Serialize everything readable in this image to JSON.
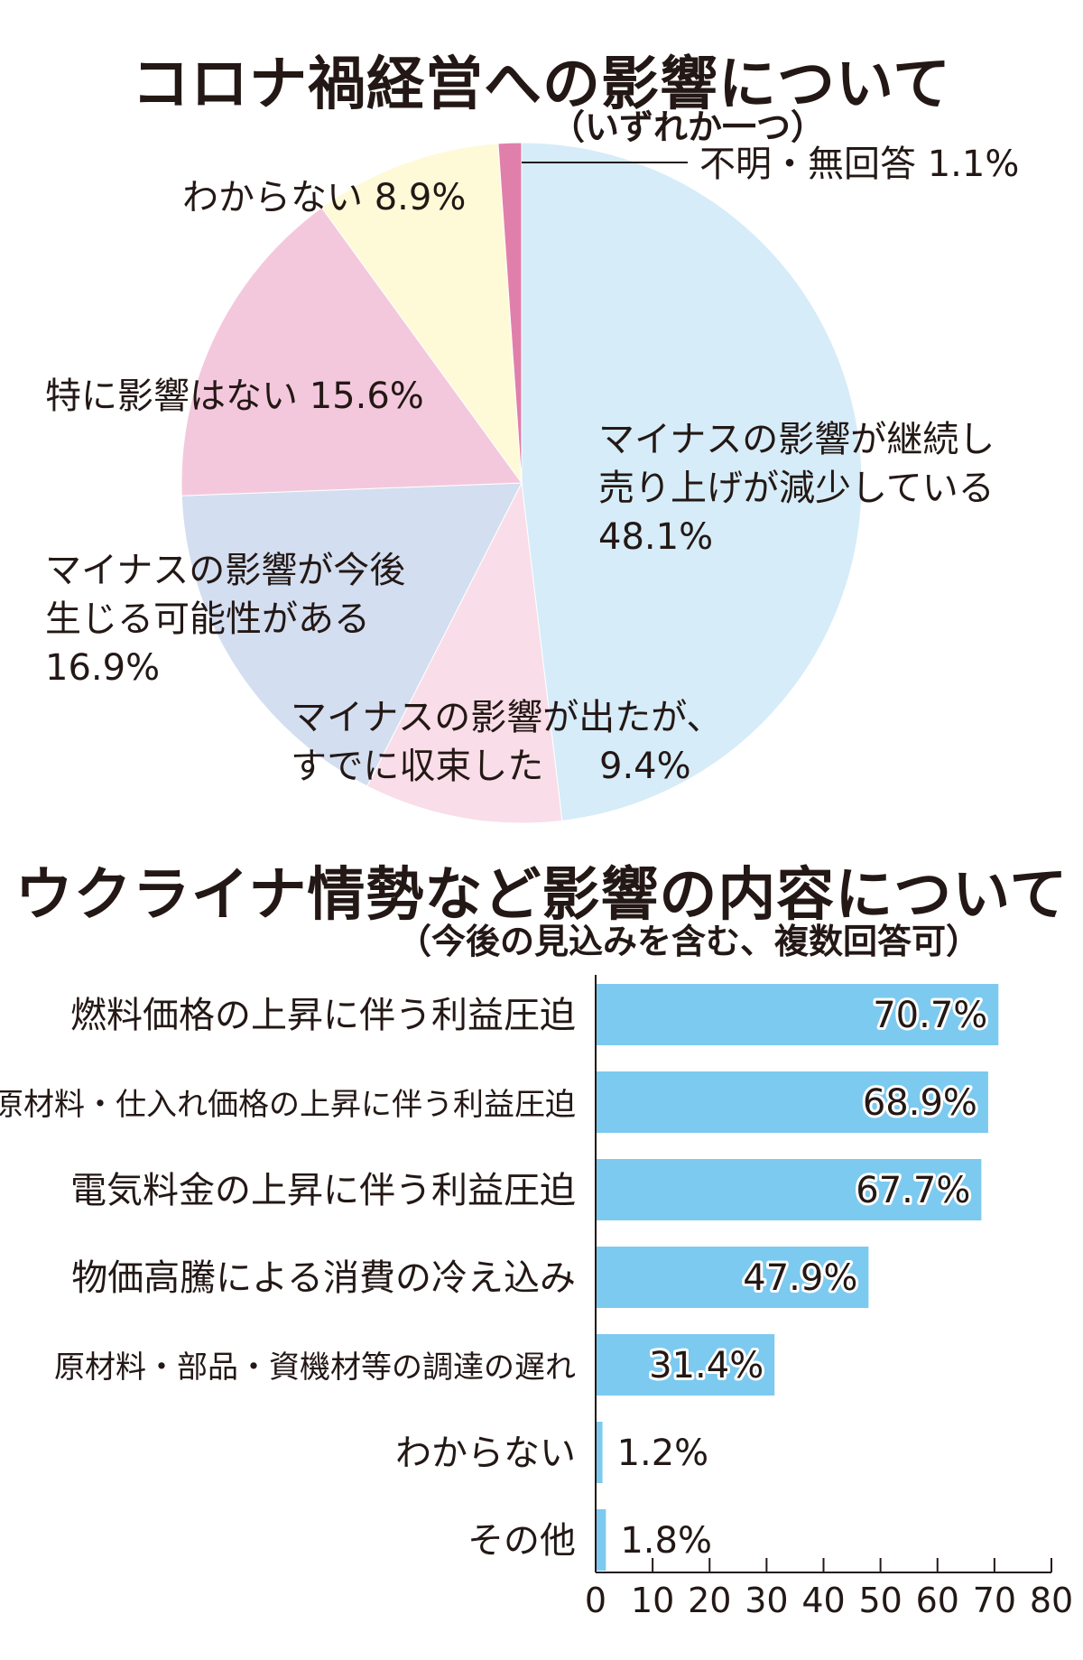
{
  "pie_title": "コロナ禍経営への影響について",
  "pie_subtitle": "（いずれか一つ）",
  "bar_title": "ウクライナ情勢など影響の内容について",
  "bar_subtitle": "（今後の見込みを含む、複数回答可）",
  "chart_data": [
    {
      "type": "pie",
      "title": "コロナ禍経営への影響について",
      "subtitle": "（いずれか一つ）",
      "slices": [
        {
          "label": [
            "マイナスの影響が継続し",
            "売り上げが減少している"
          ],
          "value": 48.1,
          "value_text": "48.1%",
          "color": "#d6ecf8"
        },
        {
          "label": [
            "マイナスの影響が出たが、",
            "すでに収束した"
          ],
          "value": 9.4,
          "value_text": "9.4%",
          "color": "#f9dde8"
        },
        {
          "label": [
            "マイナスの影響が今後",
            "生じる可能性がある"
          ],
          "value": 16.9,
          "value_text": "16.9%",
          "color": "#d3def0"
        },
        {
          "label": [
            "特に影響はない"
          ],
          "value": 15.6,
          "value_text": "15.6%",
          "color": "#f4c8dc"
        },
        {
          "label": [
            "わからない"
          ],
          "value": 8.9,
          "value_text": "8.9%",
          "color": "#fefad8"
        },
        {
          "label": [
            "不明・無回答"
          ],
          "value": 1.1,
          "value_text": "1.1%",
          "color": "#e17fab"
        }
      ]
    },
    {
      "type": "bar",
      "orientation": "horizontal",
      "title": "ウクライナ情勢など影響の内容について",
      "subtitle": "（今後の見込みを含む、複数回答可）",
      "categories": [
        "燃料価格の上昇に伴う利益圧迫",
        "原材料・仕入れ価格の上昇に伴う利益圧迫",
        "電気料金の上昇に伴う利益圧迫",
        "物価高騰による消費の冷え込み",
        "原材料・部品・資機材等の調達の遅れ",
        "わからない",
        "その他"
      ],
      "values": [
        70.7,
        68.9,
        67.7,
        47.9,
        31.4,
        1.2,
        1.8
      ],
      "value_labels": [
        "70.7%",
        "68.9%",
        "67.7%",
        "47.9%",
        "31.4%",
        "1.2%",
        "1.8%"
      ],
      "xlim": [
        0,
        80
      ],
      "ticks": [
        "0",
        "10",
        "20",
        "30",
        "40",
        "50",
        "60",
        "70",
        "80"
      ],
      "bar_color": "#7ccaf0",
      "grid": false
    }
  ]
}
